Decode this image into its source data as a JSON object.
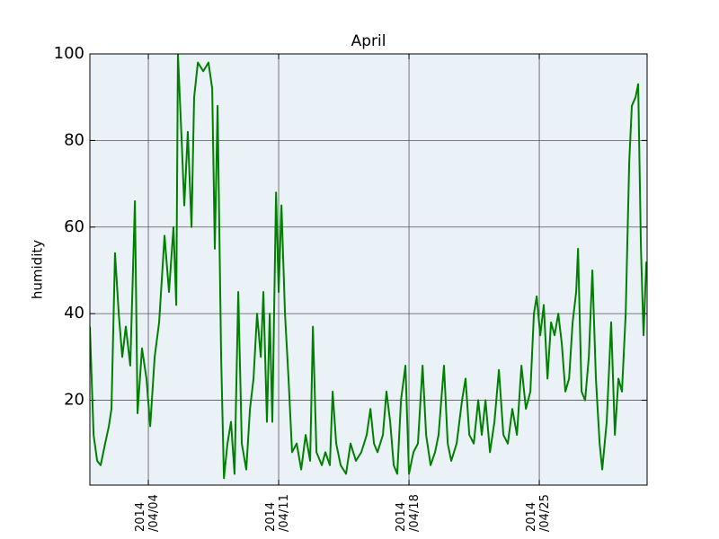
{
  "chart_data": {
    "type": "line",
    "title": "April",
    "ylabel": "humidity",
    "series": [
      {
        "name": "humidity",
        "color": "#008000",
        "x": [
          0.86,
          1.06,
          1.25,
          1.44,
          1.68,
          1.88,
          2.02,
          2.21,
          2.41,
          2.6,
          2.79,
          3.03,
          3.28,
          3.42,
          3.66,
          3.9,
          4.1,
          4.34,
          4.58,
          4.87,
          5.11,
          5.35,
          5.5,
          5.59,
          5.79,
          5.93,
          6.12,
          6.32,
          6.46,
          6.66,
          6.95,
          7.23,
          7.43,
          7.57,
          7.72,
          7.91,
          8.06,
          8.25,
          8.44,
          8.63,
          8.83,
          9.02,
          9.26,
          9.46,
          9.65,
          9.84,
          10.04,
          10.18,
          10.37,
          10.52,
          10.66,
          10.86,
          11.0,
          11.15,
          11.34,
          11.53,
          11.72,
          11.97,
          12.21,
          12.45,
          12.69,
          12.84,
          13.03,
          13.32,
          13.51,
          13.75,
          13.9,
          14.09,
          14.33,
          14.62,
          14.86,
          15.15,
          15.44,
          15.73,
          15.93,
          16.12,
          16.31,
          16.6,
          16.79,
          16.99,
          17.18,
          17.37,
          17.57,
          17.81,
          18.0,
          18.24,
          18.48,
          18.73,
          18.92,
          19.16,
          19.4,
          19.59,
          19.88,
          20.08,
          20.27,
          20.56,
          20.85,
          21.04,
          21.24,
          21.48,
          21.72,
          21.91,
          22.11,
          22.35,
          22.59,
          22.83,
          23.07,
          23.31,
          23.55,
          23.8,
          24.04,
          24.28,
          24.52,
          24.71,
          24.86,
          25.05,
          25.24,
          25.44,
          25.63,
          25.82,
          26.02,
          26.21,
          26.4,
          26.6,
          26.79,
          26.98,
          27.08,
          27.27,
          27.46,
          27.66,
          27.85,
          28.04,
          28.24,
          28.38,
          28.62,
          28.86,
          29.06,
          29.25,
          29.44,
          29.64,
          29.83,
          29.97,
          30.17,
          30.31,
          30.46,
          30.6,
          30.75
        ],
        "values": [
          37,
          12,
          6,
          5,
          10,
          14,
          18,
          54,
          40,
          30,
          37,
          28,
          66,
          17,
          32,
          25,
          14,
          30,
          38,
          58,
          45,
          60,
          42,
          100,
          80,
          65,
          82,
          60,
          90,
          98,
          96,
          98,
          92,
          55,
          88,
          30,
          2,
          10,
          15,
          3,
          45,
          10,
          4,
          18,
          25,
          40,
          30,
          45,
          15,
          40,
          15,
          68,
          45,
          65,
          40,
          25,
          8,
          10,
          4,
          12,
          6,
          37,
          8,
          5,
          8,
          5,
          22,
          10,
          5,
          3,
          10,
          6,
          8,
          12,
          18,
          10,
          8,
          12,
          22,
          15,
          5,
          3,
          20,
          28,
          3,
          8,
          10,
          28,
          12,
          5,
          8,
          12,
          28,
          10,
          6,
          10,
          20,
          25,
          12,
          10,
          20,
          12,
          20,
          8,
          15,
          27,
          12,
          10,
          18,
          12,
          28,
          18,
          22,
          40,
          44,
          35,
          42,
          25,
          38,
          35,
          40,
          33,
          22,
          25,
          38,
          45,
          55,
          22,
          20,
          30,
          50,
          25,
          10,
          4,
          15,
          38,
          12,
          25,
          22,
          40,
          75,
          88,
          90,
          93,
          55,
          35,
          52
        ]
      }
    ],
    "xlim": [
      0.86,
      30.79
    ],
    "xticks": [
      {
        "value": 4,
        "label": "2014\n/04/04"
      },
      {
        "value": 11,
        "label": "2014\n/04/11"
      },
      {
        "value": 18,
        "label": "2014\n/04/18"
      },
      {
        "value": 25,
        "label": "2014\n/04/25"
      }
    ],
    "ylim": [
      0.4,
      100
    ],
    "yticks": [
      20,
      40,
      60,
      80,
      100
    ],
    "grid": true
  }
}
